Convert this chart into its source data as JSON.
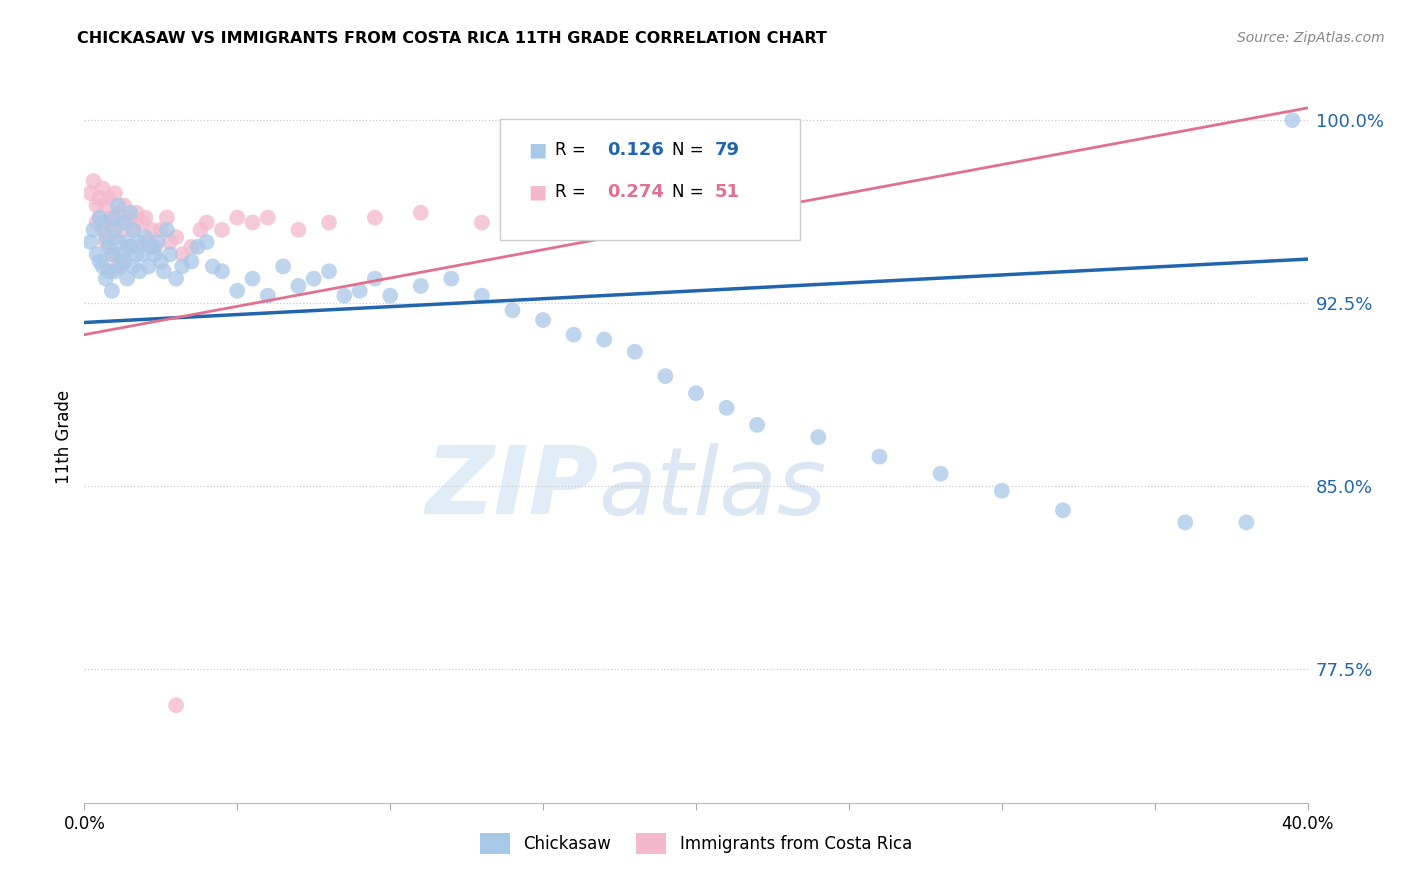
{
  "title": "CHICKASAW VS IMMIGRANTS FROM COSTA RICA 11TH GRADE CORRELATION CHART",
  "source": "Source: ZipAtlas.com",
  "ylabel": "11th Grade",
  "xlim": [
    0.0,
    0.4
  ],
  "ylim": [
    0.72,
    1.02
  ],
  "yticks": [
    0.775,
    0.85,
    0.925,
    1.0
  ],
  "ytick_labels": [
    "77.5%",
    "85.0%",
    "92.5%",
    "100.0%"
  ],
  "xticks": [
    0.0,
    0.05,
    0.1,
    0.15,
    0.2,
    0.25,
    0.3,
    0.35,
    0.4
  ],
  "xtick_labels": [
    "0.0%",
    "",
    "",
    "",
    "",
    "",
    "",
    "",
    "40.0%"
  ],
  "blue_color": "#a8c8e8",
  "pink_color": "#f4b8cc",
  "blue_line_color": "#2166ac",
  "pink_line_color": "#e07090",
  "watermark_zip": "ZIP",
  "watermark_atlas": "atlas",
  "chickasaw_x": [
    0.002,
    0.003,
    0.004,
    0.005,
    0.005,
    0.006,
    0.006,
    0.007,
    0.007,
    0.008,
    0.008,
    0.009,
    0.009,
    0.01,
    0.01,
    0.01,
    0.011,
    0.011,
    0.012,
    0.012,
    0.013,
    0.013,
    0.014,
    0.014,
    0.015,
    0.015,
    0.016,
    0.016,
    0.017,
    0.018,
    0.018,
    0.019,
    0.02,
    0.021,
    0.022,
    0.023,
    0.024,
    0.025,
    0.026,
    0.027,
    0.028,
    0.03,
    0.032,
    0.035,
    0.037,
    0.04,
    0.042,
    0.045,
    0.05,
    0.055,
    0.06,
    0.065,
    0.07,
    0.075,
    0.08,
    0.085,
    0.09,
    0.095,
    0.1,
    0.11,
    0.12,
    0.13,
    0.14,
    0.15,
    0.16,
    0.17,
    0.18,
    0.19,
    0.2,
    0.21,
    0.22,
    0.24,
    0.26,
    0.28,
    0.3,
    0.32,
    0.36,
    0.38,
    0.395
  ],
  "chickasaw_y": [
    0.95,
    0.955,
    0.945,
    0.96,
    0.942,
    0.958,
    0.94,
    0.952,
    0.935,
    0.948,
    0.938,
    0.945,
    0.93,
    0.955,
    0.96,
    0.938,
    0.95,
    0.965,
    0.945,
    0.94,
    0.958,
    0.942,
    0.95,
    0.935,
    0.948,
    0.962,
    0.955,
    0.94,
    0.945,
    0.95,
    0.938,
    0.945,
    0.952,
    0.94,
    0.948,
    0.945,
    0.95,
    0.942,
    0.938,
    0.955,
    0.945,
    0.935,
    0.94,
    0.942,
    0.948,
    0.95,
    0.94,
    0.938,
    0.93,
    0.935,
    0.928,
    0.94,
    0.932,
    0.935,
    0.938,
    0.928,
    0.93,
    0.935,
    0.928,
    0.932,
    0.935,
    0.928,
    0.922,
    0.918,
    0.912,
    0.91,
    0.905,
    0.895,
    0.888,
    0.882,
    0.875,
    0.87,
    0.862,
    0.855,
    0.848,
    0.84,
    0.835,
    0.835,
    1.0
  ],
  "costarica_x": [
    0.002,
    0.003,
    0.004,
    0.004,
    0.005,
    0.005,
    0.006,
    0.006,
    0.007,
    0.007,
    0.008,
    0.008,
    0.009,
    0.009,
    0.01,
    0.01,
    0.011,
    0.011,
    0.012,
    0.013,
    0.013,
    0.014,
    0.015,
    0.015,
    0.016,
    0.017,
    0.018,
    0.019,
    0.02,
    0.021,
    0.022,
    0.023,
    0.025,
    0.027,
    0.028,
    0.03,
    0.032,
    0.035,
    0.038,
    0.04,
    0.045,
    0.05,
    0.055,
    0.06,
    0.07,
    0.08,
    0.095,
    0.11,
    0.13,
    0.17,
    0.03
  ],
  "costarica_y": [
    0.97,
    0.975,
    0.965,
    0.958,
    0.968,
    0.96,
    0.972,
    0.955,
    0.965,
    0.95,
    0.968,
    0.958,
    0.96,
    0.945,
    0.97,
    0.952,
    0.962,
    0.94,
    0.955,
    0.965,
    0.945,
    0.958,
    0.96,
    0.948,
    0.955,
    0.962,
    0.948,
    0.958,
    0.96,
    0.95,
    0.955,
    0.948,
    0.955,
    0.96,
    0.95,
    0.952,
    0.945,
    0.948,
    0.955,
    0.958,
    0.955,
    0.96,
    0.958,
    0.96,
    0.955,
    0.958,
    0.96,
    0.962,
    0.958,
    0.96,
    0.76
  ]
}
